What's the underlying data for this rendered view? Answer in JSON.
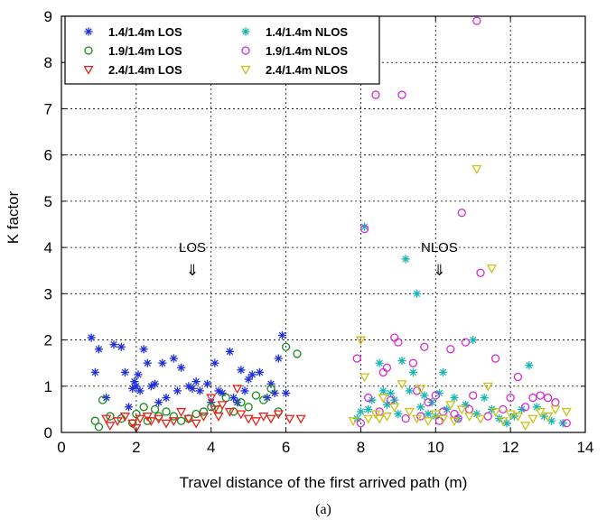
{
  "chart_data": {
    "type": "scatter",
    "xlabel": "Travel distance of the first arrived path (m)",
    "ylabel": "K factor",
    "xlim": [
      0,
      14
    ],
    "ylim": [
      0,
      9
    ],
    "xticks": [
      "0",
      "2",
      "4",
      "6",
      "8",
      "10",
      "12",
      "14"
    ],
    "yticks": [
      "0",
      "1",
      "2",
      "3",
      "4",
      "5",
      "6",
      "7",
      "8",
      "9"
    ],
    "grid": true,
    "legend_position": "top-left",
    "caption": "(a)",
    "annotations": [
      {
        "text": "LOS",
        "arrow": "⇓",
        "x": 3.5,
        "y": 3.9
      },
      {
        "text": "NLOS",
        "arrow": "⇓",
        "x": 10.1,
        "y": 3.9
      }
    ],
    "series": [
      {
        "name": "1.4/1.4m LOS",
        "marker": "star",
        "color": "#1f2fd6",
        "points": [
          [
            0.8,
            2.05
          ],
          [
            0.9,
            1.3
          ],
          [
            1.0,
            1.8
          ],
          [
            1.2,
            0.75
          ],
          [
            1.4,
            1.9
          ],
          [
            1.6,
            1.85
          ],
          [
            1.7,
            1.3
          ],
          [
            1.8,
            0.55
          ],
          [
            1.9,
            0.95
          ],
          [
            1.95,
            1.1
          ],
          [
            2.0,
            1.0
          ],
          [
            2.05,
            1.25
          ],
          [
            2.1,
            0.9
          ],
          [
            2.2,
            1.8
          ],
          [
            2.3,
            1.5
          ],
          [
            2.4,
            1.0
          ],
          [
            2.5,
            1.05
          ],
          [
            2.6,
            0.65
          ],
          [
            2.7,
            1.5
          ],
          [
            2.8,
            0.75
          ],
          [
            3.0,
            1.6
          ],
          [
            3.1,
            0.9
          ],
          [
            3.2,
            1.4
          ],
          [
            3.4,
            1.0
          ],
          [
            3.5,
            0.95
          ],
          [
            3.6,
            1.1
          ],
          [
            3.7,
            0.9
          ],
          [
            3.9,
            1.05
          ],
          [
            4.0,
            0.65
          ],
          [
            4.1,
            1.5
          ],
          [
            4.2,
            0.9
          ],
          [
            4.3,
            0.85
          ],
          [
            4.5,
            1.75
          ],
          [
            4.6,
            0.75
          ],
          [
            4.7,
            0.65
          ],
          [
            4.8,
            1.35
          ],
          [
            4.9,
            0.9
          ],
          [
            5.0,
            1.15
          ],
          [
            5.1,
            1.25
          ],
          [
            5.3,
            1.3
          ],
          [
            5.5,
            0.75
          ],
          [
            5.6,
            1.05
          ],
          [
            5.7,
            0.85
          ],
          [
            5.8,
            1.6
          ],
          [
            5.9,
            2.1
          ],
          [
            6.0,
            0.85
          ]
        ]
      },
      {
        "name": "1.9/1.4m LOS",
        "marker": "circle",
        "color": "#1c8a1c",
        "points": [
          [
            0.9,
            0.25
          ],
          [
            1.0,
            0.12
          ],
          [
            1.1,
            0.7
          ],
          [
            1.3,
            0.35
          ],
          [
            1.6,
            0.3
          ],
          [
            1.9,
            0.2
          ],
          [
            2.0,
            0.4
          ],
          [
            2.2,
            0.55
          ],
          [
            2.3,
            0.25
          ],
          [
            2.5,
            0.5
          ],
          [
            2.6,
            0.35
          ],
          [
            2.8,
            0.45
          ],
          [
            3.0,
            0.35
          ],
          [
            3.2,
            0.25
          ],
          [
            3.4,
            0.3
          ],
          [
            3.6,
            0.4
          ],
          [
            3.8,
            0.45
          ],
          [
            4.0,
            0.55
          ],
          [
            4.2,
            0.5
          ],
          [
            4.4,
            0.75
          ],
          [
            4.6,
            0.45
          ],
          [
            4.8,
            0.65
          ],
          [
            5.0,
            0.55
          ],
          [
            5.2,
            0.8
          ],
          [
            5.4,
            0.7
          ],
          [
            5.6,
            0.95
          ],
          [
            5.8,
            0.45
          ],
          [
            6.0,
            1.85
          ],
          [
            6.3,
            1.7
          ]
        ]
      },
      {
        "name": "2.4/1.4m LOS",
        "marker": "triangle-down",
        "color": "#e8231c",
        "points": [
          [
            1.2,
            0.3
          ],
          [
            1.3,
            0.15
          ],
          [
            1.5,
            0.25
          ],
          [
            1.7,
            0.35
          ],
          [
            1.9,
            0.2
          ],
          [
            2.0,
            0.1
          ],
          [
            2.1,
            0.3
          ],
          [
            2.3,
            0.35
          ],
          [
            2.4,
            0.25
          ],
          [
            2.6,
            0.3
          ],
          [
            2.8,
            0.2
          ],
          [
            3.0,
            0.25
          ],
          [
            3.2,
            0.45
          ],
          [
            3.4,
            0.3
          ],
          [
            3.6,
            0.2
          ],
          [
            3.8,
            0.35
          ],
          [
            4.0,
            0.75
          ],
          [
            4.1,
            0.5
          ],
          [
            4.2,
            0.35
          ],
          [
            4.3,
            0.6
          ],
          [
            4.5,
            0.45
          ],
          [
            4.7,
            0.95
          ],
          [
            4.8,
            0.4
          ],
          [
            5.0,
            0.3
          ],
          [
            5.2,
            0.25
          ],
          [
            5.4,
            0.35
          ],
          [
            5.6,
            0.3
          ],
          [
            5.8,
            0.4
          ],
          [
            6.1,
            0.3
          ],
          [
            6.4,
            0.3
          ]
        ]
      },
      {
        "name": "1.4/1.4m NLOS",
        "marker": "asterisk",
        "color": "#1ab5b5",
        "points": [
          [
            7.9,
            0.3
          ],
          [
            8.0,
            0.45
          ],
          [
            8.1,
            4.45
          ],
          [
            8.2,
            0.5
          ],
          [
            8.3,
            0.7
          ],
          [
            8.5,
            1.5
          ],
          [
            8.6,
            0.9
          ],
          [
            8.7,
            0.6
          ],
          [
            8.8,
            0.85
          ],
          [
            8.9,
            0.7
          ],
          [
            9.0,
            0.4
          ],
          [
            9.1,
            1.55
          ],
          [
            9.2,
            3.75
          ],
          [
            9.3,
            0.9
          ],
          [
            9.4,
            1.3
          ],
          [
            9.5,
            3.0
          ],
          [
            9.6,
            0.55
          ],
          [
            9.7,
            0.8
          ],
          [
            9.8,
            0.4
          ],
          [
            9.9,
            0.65
          ],
          [
            10.0,
            0.35
          ],
          [
            10.1,
            0.85
          ],
          [
            10.2,
            1.3
          ],
          [
            10.3,
            0.5
          ],
          [
            10.5,
            0.75
          ],
          [
            10.6,
            0.3
          ],
          [
            10.8,
            0.6
          ],
          [
            11.0,
            2.0
          ],
          [
            11.1,
            0.4
          ],
          [
            11.3,
            0.75
          ],
          [
            11.5,
            0.5
          ],
          [
            11.7,
            0.3
          ],
          [
            11.9,
            0.2
          ],
          [
            12.1,
            0.35
          ],
          [
            12.3,
            0.5
          ],
          [
            12.5,
            1.45
          ],
          [
            12.7,
            0.55
          ],
          [
            12.9,
            0.35
          ],
          [
            13.1,
            0.25
          ],
          [
            13.4,
            0.2
          ]
        ]
      },
      {
        "name": "1.9/1.4m NLOS",
        "marker": "circle",
        "color": "#d42cd4",
        "points": [
          [
            7.9,
            1.6
          ],
          [
            8.0,
            0.2
          ],
          [
            8.1,
            4.4
          ],
          [
            8.2,
            0.75
          ],
          [
            8.4,
            7.3
          ],
          [
            8.5,
            0.45
          ],
          [
            8.6,
            1.3
          ],
          [
            8.7,
            1.4
          ],
          [
            8.8,
            0.7
          ],
          [
            8.9,
            2.05
          ],
          [
            9.0,
            1.95
          ],
          [
            9.1,
            7.3
          ],
          [
            9.2,
            0.3
          ],
          [
            9.4,
            1.5
          ],
          [
            9.5,
            0.9
          ],
          [
            9.6,
            0.35
          ],
          [
            9.7,
            1.85
          ],
          [
            9.8,
            0.65
          ],
          [
            10.0,
            0.8
          ],
          [
            10.1,
            0.25
          ],
          [
            10.2,
            0.45
          ],
          [
            10.4,
            1.8
          ],
          [
            10.5,
            0.4
          ],
          [
            10.6,
            0.3
          ],
          [
            10.7,
            4.75
          ],
          [
            10.8,
            1.95
          ],
          [
            10.9,
            0.5
          ],
          [
            11.0,
            0.8
          ],
          [
            11.1,
            8.9
          ],
          [
            11.2,
            3.45
          ],
          [
            11.4,
            0.35
          ],
          [
            11.6,
            1.6
          ],
          [
            11.8,
            0.5
          ],
          [
            12.0,
            0.75
          ],
          [
            12.2,
            1.2
          ],
          [
            12.4,
            0.55
          ],
          [
            12.6,
            0.75
          ],
          [
            12.8,
            0.8
          ],
          [
            13.0,
            0.75
          ],
          [
            13.2,
            0.65
          ],
          [
            13.5,
            0.2
          ]
        ]
      },
      {
        "name": "2.4/1.4m NLOS",
        "marker": "triangle-down",
        "color": "#c9c21a",
        "points": [
          [
            7.8,
            0.25
          ],
          [
            8.0,
            2.0
          ],
          [
            8.1,
            1.2
          ],
          [
            8.2,
            0.3
          ],
          [
            8.4,
            0.4
          ],
          [
            8.5,
            0.3
          ],
          [
            8.6,
            0.75
          ],
          [
            8.7,
            0.35
          ],
          [
            8.9,
            0.55
          ],
          [
            9.1,
            1.05
          ],
          [
            9.3,
            0.45
          ],
          [
            9.5,
            0.3
          ],
          [
            9.6,
            0.95
          ],
          [
            9.8,
            0.25
          ],
          [
            10.0,
            0.4
          ],
          [
            10.2,
            0.3
          ],
          [
            10.4,
            0.6
          ],
          [
            10.5,
            0.25
          ],
          [
            10.7,
            0.5
          ],
          [
            10.9,
            0.35
          ],
          [
            11.1,
            5.7
          ],
          [
            11.2,
            0.3
          ],
          [
            11.4,
            1.0
          ],
          [
            11.5,
            3.55
          ],
          [
            11.6,
            0.45
          ],
          [
            11.8,
            0.25
          ],
          [
            12.0,
            0.4
          ],
          [
            12.2,
            0.35
          ],
          [
            12.4,
            0.15
          ],
          [
            12.6,
            0.3
          ],
          [
            12.8,
            0.45
          ],
          [
            13.0,
            0.35
          ],
          [
            13.2,
            0.5
          ],
          [
            13.5,
            0.45
          ]
        ]
      }
    ]
  }
}
